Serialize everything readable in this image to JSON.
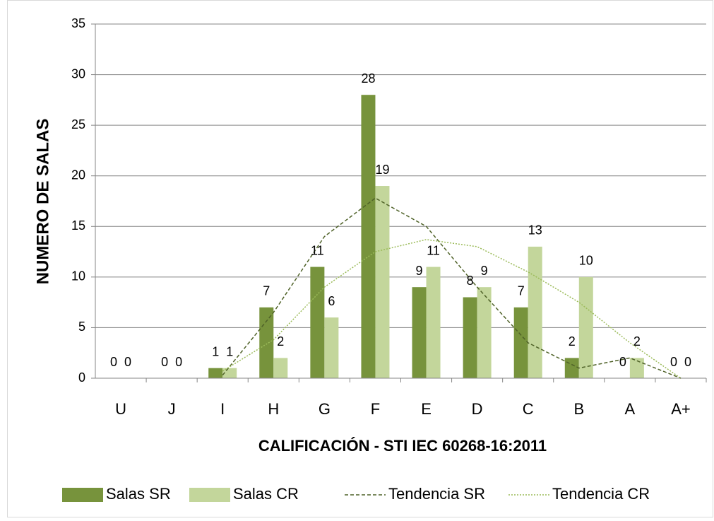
{
  "chart_data": {
    "type": "bar",
    "categories": [
      "U",
      "J",
      "I",
      "H",
      "G",
      "F",
      "E",
      "D",
      "C",
      "B",
      "A",
      "A+"
    ],
    "series": [
      {
        "name": "Salas SR",
        "color": "#77933c",
        "kind": "bar",
        "values": [
          0,
          0,
          1,
          7,
          11,
          28,
          9,
          8,
          7,
          2,
          0,
          0
        ]
      },
      {
        "name": "Salas CR",
        "color": "#c3d69b",
        "kind": "bar",
        "values": [
          0,
          0,
          1,
          2,
          6,
          19,
          11,
          9,
          13,
          10,
          2,
          0
        ]
      },
      {
        "name": "Tendencia SR",
        "color": "#4f6228",
        "kind": "line",
        "dash": "dashed",
        "values": [
          0.6,
          null,
          0.3,
          6.5,
          14,
          17.8,
          15,
          9,
          3.5,
          1,
          2,
          0
        ]
      },
      {
        "name": "Tendencia CR",
        "color": "#9bbb59",
        "kind": "line",
        "dash": "dotted",
        "values": [
          0.3,
          null,
          0.7,
          3.8,
          9,
          12.5,
          13.7,
          13,
          10.5,
          7.5,
          3.5,
          0
        ]
      }
    ],
    "xlabel": "CALIFICACIÓN  - STI  IEC 60268-16:2011",
    "ylabel": "NUMERO DE SALAS",
    "ylim": [
      0,
      35
    ],
    "yticks": [
      0,
      5,
      10,
      15,
      20,
      25,
      30,
      35
    ],
    "grid": true,
    "legend": "bottom"
  }
}
